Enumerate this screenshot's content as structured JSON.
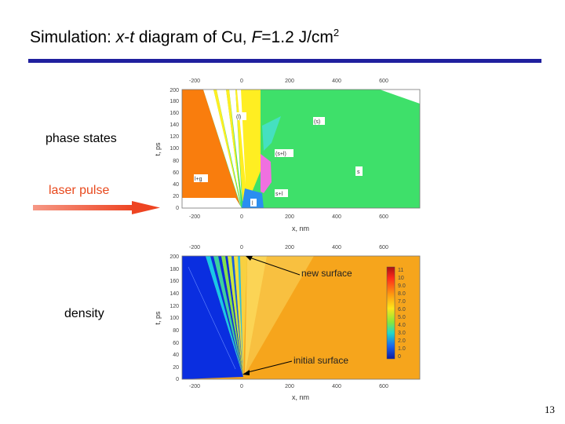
{
  "title": {
    "prefix": "Simulation: ",
    "x": "x",
    "dash": "-",
    "t": "t",
    "middle": " diagram of Cu, ",
    "F": "F",
    "value": "=1.2 J/cm",
    "sup": "2"
  },
  "labels": {
    "phase_states": "phase states",
    "laser_pulse": "laser pulse",
    "density": "density"
  },
  "top_plot": {
    "x_ticks": [
      "-200",
      "0",
      "200",
      "400",
      "600"
    ],
    "y_ticks": [
      "200",
      "180",
      "160",
      "140",
      "120",
      "100",
      "80",
      "60",
      "40",
      "20",
      "0"
    ],
    "xlabel": "x, nm",
    "ylabel": "t, ps",
    "regions": {
      "l": "(l)",
      "s": "(s)",
      "sl": "(s+l)",
      "lg": "l+g",
      "s_l": "s+l",
      "sv": "s",
      "lo": "l"
    }
  },
  "bottom_plot": {
    "x_ticks": [
      "-200",
      "0",
      "200",
      "400",
      "600"
    ],
    "y_ticks": [
      "200",
      "180",
      "160",
      "140",
      "120",
      "100",
      "80",
      "60",
      "40",
      "20",
      "0"
    ],
    "xlabel": "x, nm",
    "ylabel": "t, ps",
    "annotations": {
      "new_surface": "new surface",
      "initial_surface": "initial surface"
    },
    "colorbar_ticks": [
      "11",
      "10",
      "9.0",
      "8.0",
      "7.0",
      "6.0",
      "5.0",
      "4.0",
      "3.0",
      "2.0",
      "1.0",
      "0"
    ]
  },
  "colors": {
    "title_rule": "#1f1f9e",
    "laser_arrow": "#ee4422",
    "orange": "#f97d0d",
    "green": "#3ee06a",
    "density_blue": "#0a2ee0",
    "density_orange": "#f6a51c"
  },
  "slide_number": "13"
}
